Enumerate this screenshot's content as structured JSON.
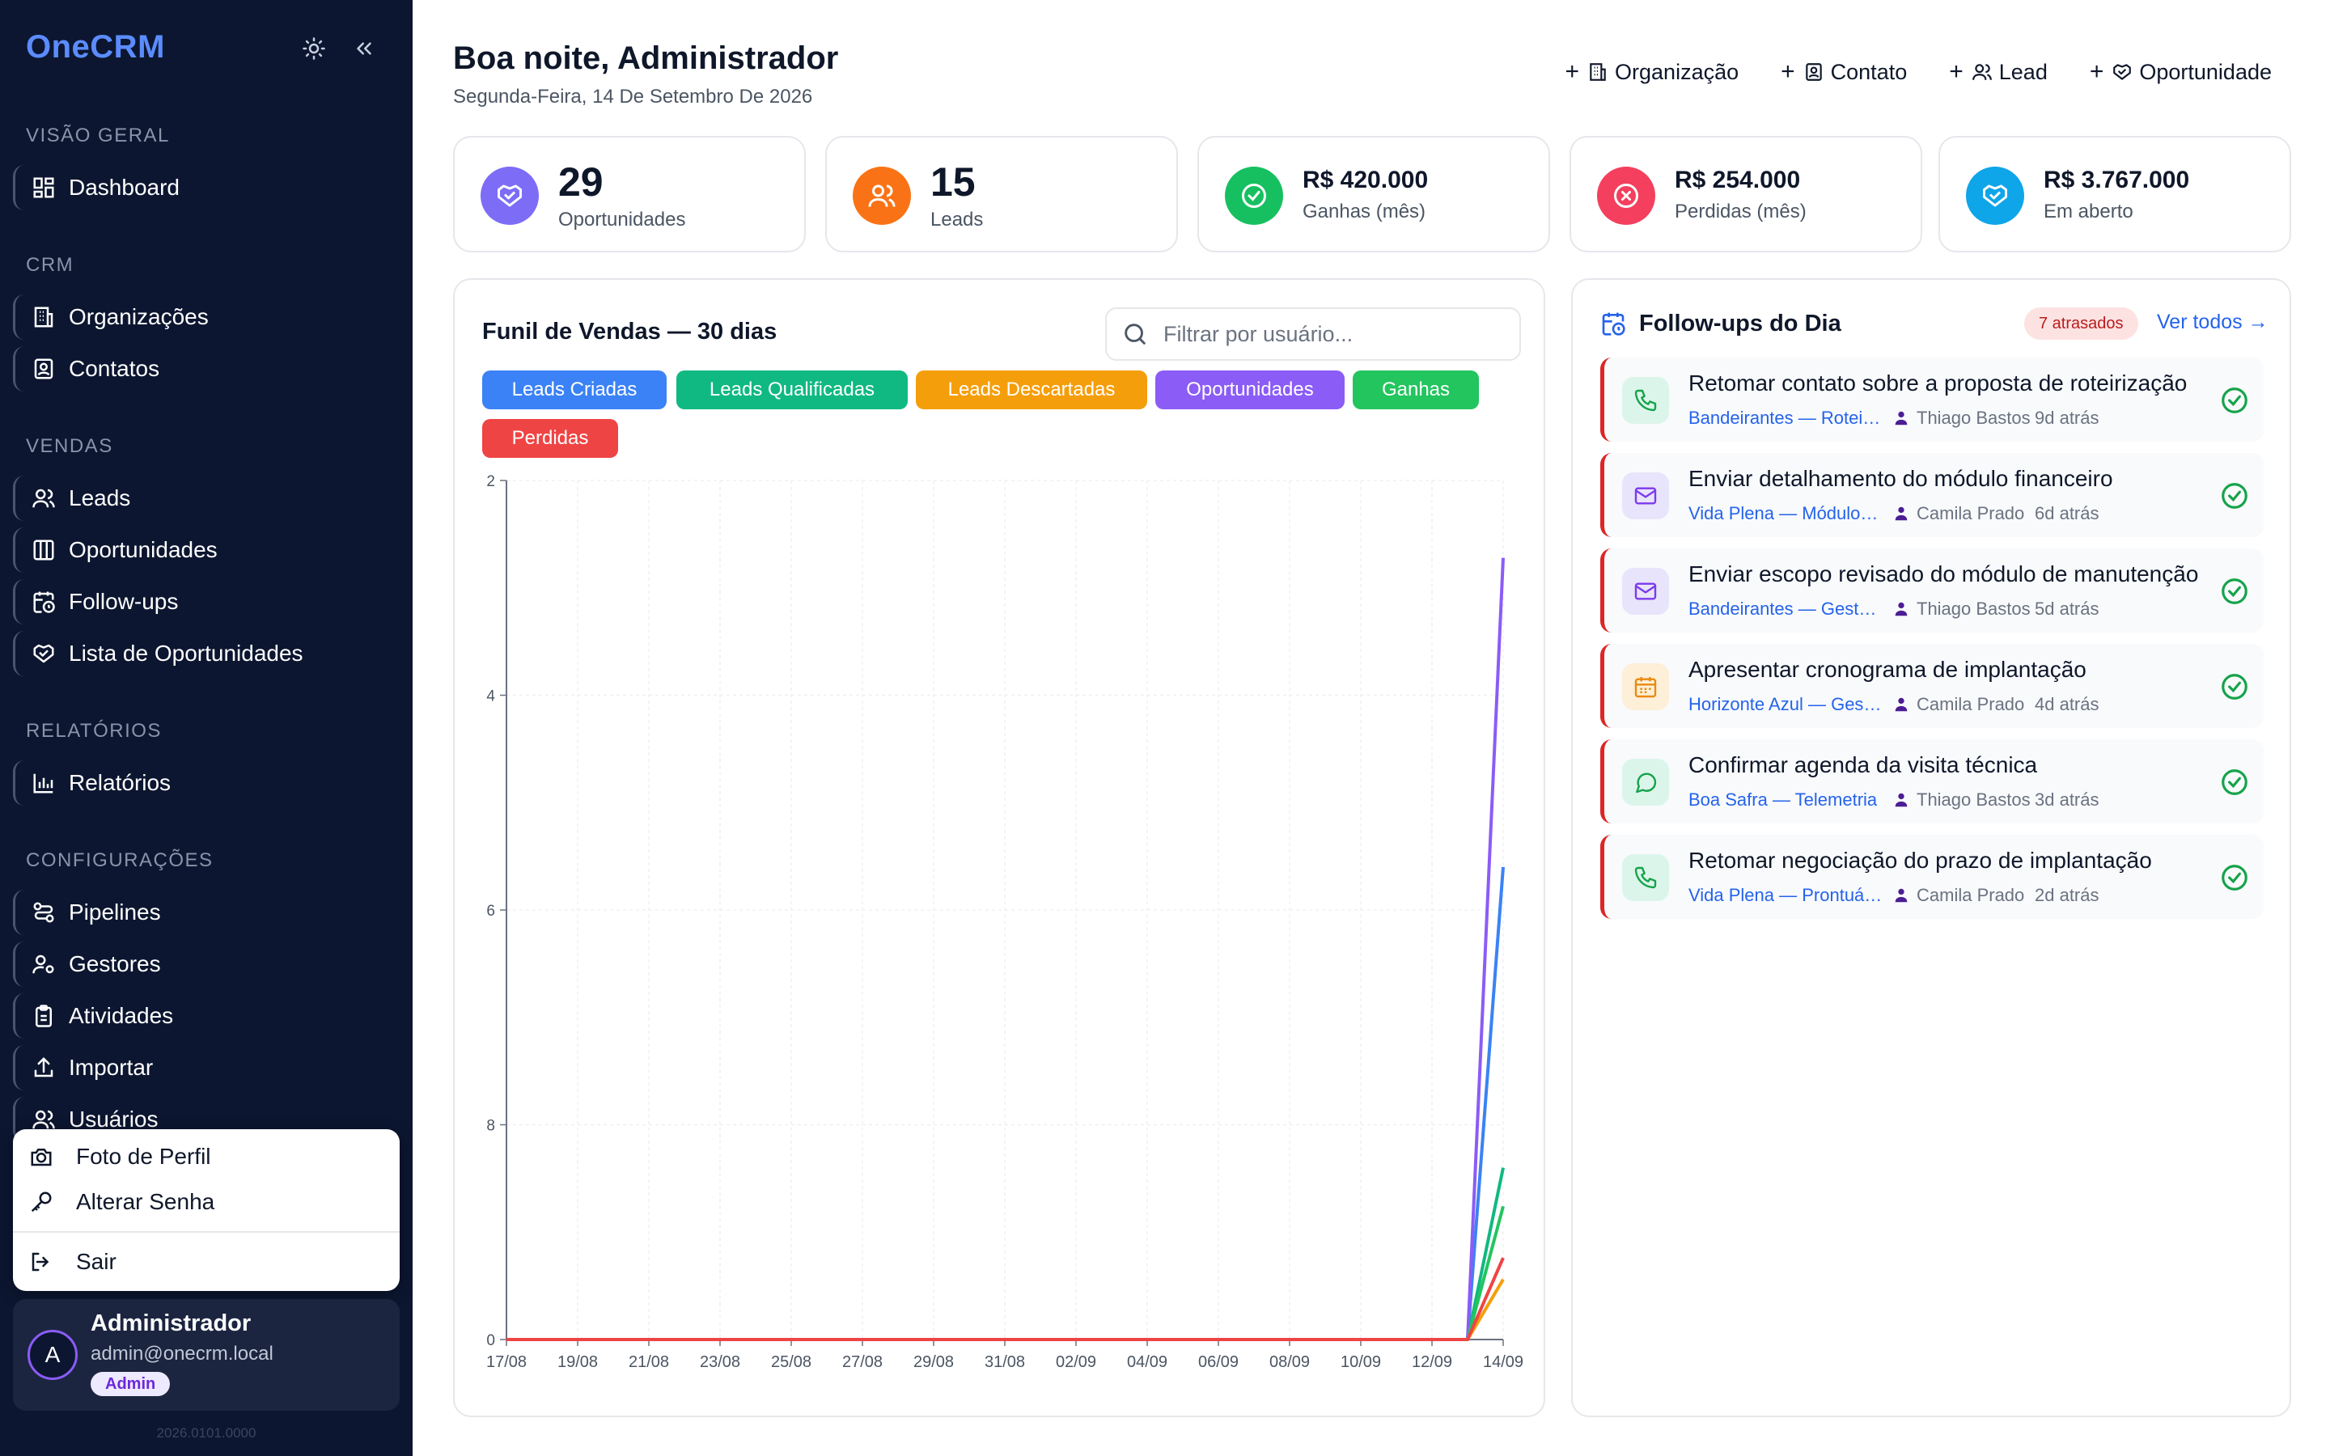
{
  "app": {
    "brand": "OneCRM",
    "version": "2026.0101.0000"
  },
  "sidebar": {
    "sections": {
      "overview": "VISÃO GERAL",
      "crm": "CRM",
      "sales": "VENDAS",
      "reports": "RELATÓRIOS",
      "settings": "CONFIGURAÇÕES"
    },
    "items": {
      "dashboard": "Dashboard",
      "organizations": "Organizações",
      "contacts": "Contatos",
      "leads": "Leads",
      "opportunities": "Oportunidades",
      "followups": "Follow-ups",
      "opportunity_list": "Lista de Oportunidades",
      "reports": "Relatórios",
      "pipelines": "Pipelines",
      "managers": "Gestores",
      "activities": "Atividades",
      "import": "Importar",
      "users": "Usuários"
    }
  },
  "user_menu": {
    "profile_photo": "Foto de Perfil",
    "change_password": "Alterar Senha",
    "logout": "Sair"
  },
  "user": {
    "initial": "A",
    "name": "Administrador",
    "email": "admin@onecrm.local",
    "role": "Admin"
  },
  "header": {
    "greeting": "Boa noite, Administrador",
    "date": "Segunda-Feira, 14 De Setembro De 2026",
    "actions": {
      "organization": "Organização",
      "contact": "Contato",
      "lead": "Lead",
      "opportunity": "Oportunidade"
    }
  },
  "stats": {
    "opportunities": {
      "value": "29",
      "label": "Oportunidades"
    },
    "leads": {
      "value": "15",
      "label": "Leads"
    },
    "won": {
      "value": "R$ 420.000",
      "label": "Ganhas (mês)"
    },
    "lost": {
      "value": "R$ 254.000",
      "label": "Perdidas (mês)"
    },
    "open": {
      "value": "R$ 3.767.000",
      "label": "Em aberto"
    }
  },
  "funnel": {
    "title": "Funil de Vendas — 30 dias",
    "filter_placeholder": "Filtrar por usuário..."
  },
  "chart_data": {
    "type": "line",
    "title": "Funil de Vendas — 30 dias",
    "x": [
      "17/08",
      "18/08",
      "19/08",
      "20/08",
      "21/08",
      "22/08",
      "23/08",
      "24/08",
      "25/08",
      "26/08",
      "27/08",
      "28/08",
      "29/08",
      "30/08",
      "31/08",
      "01/09",
      "02/09",
      "03/09",
      "04/09",
      "05/09",
      "06/09",
      "07/09",
      "08/09",
      "09/09",
      "10/09",
      "11/09",
      "12/09",
      "13/09",
      "14/09"
    ],
    "x_tick_labels": [
      "17/08",
      "19/08",
      "21/08",
      "23/08",
      "25/08",
      "27/08",
      "29/08",
      "31/08",
      "02/09",
      "04/09",
      "06/09",
      "08/09",
      "10/09",
      "12/09",
      "14/09"
    ],
    "y_tick_labels": [
      "0",
      "8",
      "6",
      "4",
      "2"
    ],
    "ylim": [
      0,
      2
    ],
    "grid": true,
    "series": [
      {
        "name": "Leads Criadas",
        "color": "#3b82f6",
        "values": [
          0,
          0,
          0,
          0,
          0,
          0,
          0,
          0,
          0,
          0,
          0,
          0,
          0,
          0,
          0,
          0,
          0,
          0,
          0,
          0,
          0,
          0,
          0,
          0,
          0,
          0,
          0,
          0,
          1.1
        ]
      },
      {
        "name": "Leads Qualificadas",
        "color": "#10b981",
        "values": [
          0,
          0,
          0,
          0,
          0,
          0,
          0,
          0,
          0,
          0,
          0,
          0,
          0,
          0,
          0,
          0,
          0,
          0,
          0,
          0,
          0,
          0,
          0,
          0,
          0,
          0,
          0,
          0,
          0.4
        ]
      },
      {
        "name": "Leads Descartadas",
        "color": "#f59e0b",
        "values": [
          0,
          0,
          0,
          0,
          0,
          0,
          0,
          0,
          0,
          0,
          0,
          0,
          0,
          0,
          0,
          0,
          0,
          0,
          0,
          0,
          0,
          0,
          0,
          0,
          0,
          0,
          0,
          0,
          0.14
        ]
      },
      {
        "name": "Oportunidades",
        "color": "#8b5cf6",
        "values": [
          0,
          0,
          0,
          0,
          0,
          0,
          0,
          0,
          0,
          0,
          0,
          0,
          0,
          0,
          0,
          0,
          0,
          0,
          0,
          0,
          0,
          0,
          0,
          0,
          0,
          0,
          0,
          0,
          1.82
        ]
      },
      {
        "name": "Ganhas",
        "color": "#22c55e",
        "values": [
          0,
          0,
          0,
          0,
          0,
          0,
          0,
          0,
          0,
          0,
          0,
          0,
          0,
          0,
          0,
          0,
          0,
          0,
          0,
          0,
          0,
          0,
          0,
          0,
          0,
          0,
          0,
          0,
          0.31
        ]
      },
      {
        "name": "Perdidas",
        "color": "#ef4444",
        "values": [
          0,
          0,
          0,
          0,
          0,
          0,
          0,
          0,
          0,
          0,
          0,
          0,
          0,
          0,
          0,
          0,
          0,
          0,
          0,
          0,
          0,
          0,
          0,
          0,
          0,
          0,
          0,
          0,
          0.19
        ]
      }
    ]
  },
  "followups": {
    "title": "Follow-ups do Dia",
    "overdue_badge": "7 atrasados",
    "see_all": "Ver todos →",
    "items": [
      {
        "icon": "phone-icon",
        "title": "Retomar contato sobre a proposta de roteirização",
        "org": "Bandeirantes — Roteirização",
        "person": "Thiago Bastos",
        "ago": "9d atrás"
      },
      {
        "icon": "mail-icon",
        "title": "Enviar detalhamento do módulo financeiro",
        "org": "Vida Plena — Módulo Financeiro",
        "person": "Camila Prado",
        "ago": "6d atrás"
      },
      {
        "icon": "mail-icon",
        "title": "Enviar escopo revisado do módulo de manutenção",
        "org": "Bandeirantes — Gestão de Frota",
        "person": "Thiago Bastos",
        "ago": "5d atrás"
      },
      {
        "icon": "calendar-icon",
        "title": "Apresentar cronograma de implantação",
        "org": "Horizonte Azul — Gestão",
        "person": "Camila Prado",
        "ago": "4d atrás"
      },
      {
        "icon": "chat-icon",
        "title": "Confirmar agenda da visita técnica",
        "org": "Boa Safra — Telemetria",
        "person": "Thiago Bastos",
        "ago": "3d atrás"
      },
      {
        "icon": "phone-icon",
        "title": "Retomar negociação do prazo de implantação",
        "org": "Vida Plena — Prontuário",
        "person": "Camila Prado",
        "ago": "2d atrás"
      }
    ]
  }
}
